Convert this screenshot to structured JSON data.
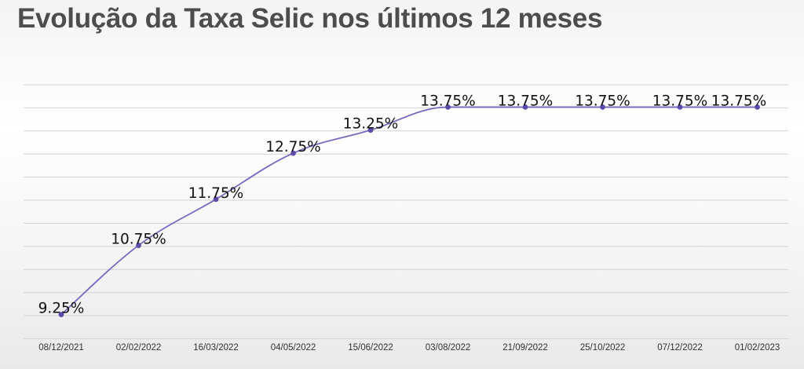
{
  "title": "Evolução da Taxa Selic nos últimos 12 meses",
  "chart_data": {
    "type": "line",
    "title": "Evolução da Taxa Selic nos últimos 12 meses",
    "xlabel": "",
    "ylabel": "",
    "categories": [
      "08/12/2021",
      "02/02/2022",
      "16/03/2022",
      "04/05/2022",
      "15/06/2022",
      "03/08/2022",
      "21/09/2022",
      "25/10/2022",
      "07/12/2022",
      "01/02/2023"
    ],
    "series": [
      {
        "values": [
          9.25,
          10.75,
          11.75,
          12.75,
          13.25,
          13.75,
          13.75,
          13.75,
          13.75,
          13.75
        ]
      }
    ],
    "data_labels": [
      "9.25%",
      "10.75%",
      "11.75%",
      "12.75%",
      "13.25%",
      "13.75%",
      "13.75%",
      "13.75%",
      "13.75%",
      "13.75%"
    ],
    "ylim": [
      8.75,
      14.25
    ],
    "grid": true,
    "legend": "none",
    "colors": {
      "line": "#7b68c2",
      "marker": "#5e4aa8",
      "title": "#4d4d4d"
    }
  }
}
